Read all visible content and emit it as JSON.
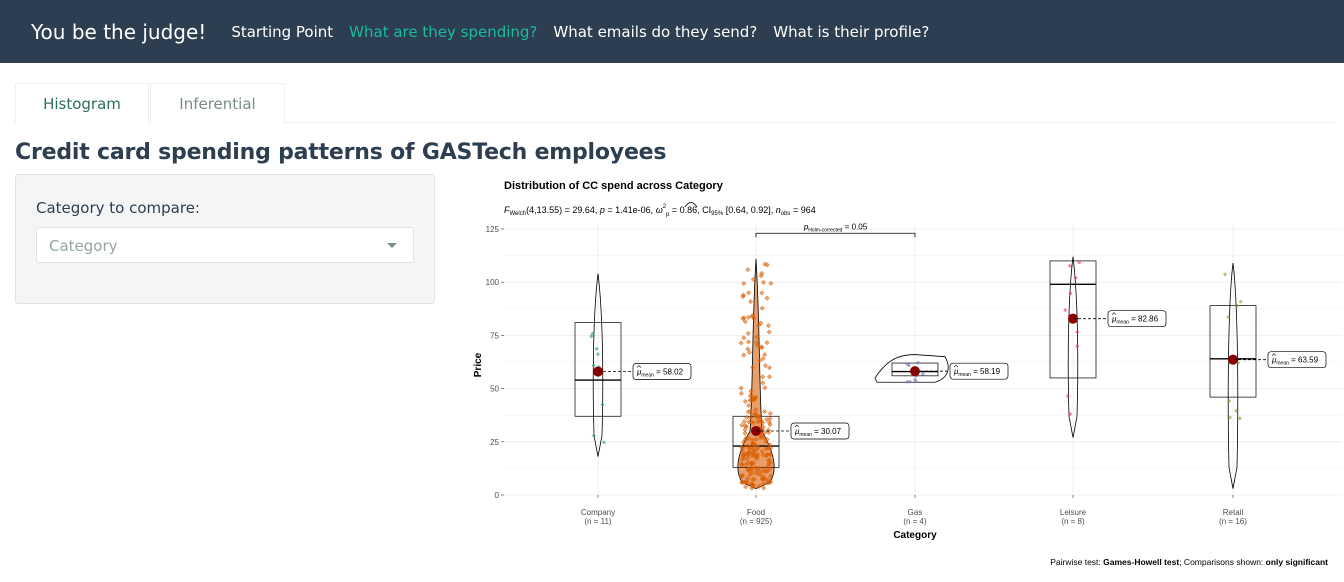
{
  "navbar": {
    "brand": "You be the judge!",
    "links": [
      "Starting Point",
      "What are they spending?",
      "What emails do they send?",
      "What is their profile?"
    ],
    "active_index": 1,
    "bg_color": "#2c3e50",
    "active_color": "#18bc9c"
  },
  "tabs": [
    "Histogram",
    "Inferential"
  ],
  "page_title": "Credit card spending patterns of GASTech employees",
  "sidebar": {
    "label": "Category to compare:",
    "select_placeholder": "Category"
  },
  "chart_data": {
    "type": "violin-box",
    "title": "Distribution of CC spend across Category",
    "subtitle_parts": {
      "stat": "F",
      "stat_sub": "Welch",
      "df": "(4,13.55) = 29.64, ",
      "p": "p",
      "p_value": " = 1.41e-06, ",
      "omega": "ω",
      "omega_sup": "2",
      "omega_sub": "p",
      "omega_value": " = 0.86, CI",
      "ci_sub": "95%",
      "ci_value": " [0.64, 0.92], ",
      "n": "n",
      "n_sub": "obs",
      "n_value": " = 964"
    },
    "xlabel": "Category",
    "ylabel": "Price",
    "ylim": [
      0,
      125
    ],
    "yticks": [
      0,
      25,
      50,
      75,
      100,
      125
    ],
    "grid": true,
    "pairwise": {
      "from": "Food",
      "to": "Gas",
      "label_p": "p",
      "label_sub": "Holm-corrected",
      "label_value": " = 0.05"
    },
    "mean_label_prefix": "μ",
    "mean_label_sub": "mean",
    "categories": [
      {
        "name": "Company",
        "n_label": "(n = 11)",
        "mean": 58.02,
        "mean_label": " = 58.02",
        "q1": 37,
        "median": 54,
        "q3": 81,
        "min": 18,
        "max": 104,
        "color": "#1b9e77"
      },
      {
        "name": "Food",
        "n_label": "(n = 925)",
        "mean": 30.07,
        "mean_label": " = 30.07",
        "q1": 13,
        "median": 23,
        "q3": 37,
        "min": 3,
        "max": 111,
        "color": "#d95f02"
      },
      {
        "name": "Gas",
        "n_label": "(n = 4)",
        "mean": 58.19,
        "mean_label": " = 58.19",
        "q1": 56,
        "median": 58,
        "q3": 62,
        "min": 53,
        "max": 66,
        "color": "#7570b3"
      },
      {
        "name": "Leisure",
        "n_label": "(n = 8)",
        "mean": 82.86,
        "mean_label": " = 82.86",
        "q1": 55,
        "median": 99,
        "q3": 110,
        "min": 27,
        "max": 112,
        "color": "#e7298a"
      },
      {
        "name": "Retail",
        "n_label": "(n = 16)",
        "mean": 63.59,
        "mean_label": " = 63.59",
        "q1": 46,
        "median": 64,
        "q3": 89,
        "min": 3,
        "max": 109,
        "color": "#66a61e"
      }
    ],
    "caption_prefix": "Pairwise test: ",
    "caption_test": "Games-Howell test",
    "caption_mid": "; Comparisons shown: ",
    "caption_shown": "only significant",
    "mean_point_color": "#8b0000"
  }
}
